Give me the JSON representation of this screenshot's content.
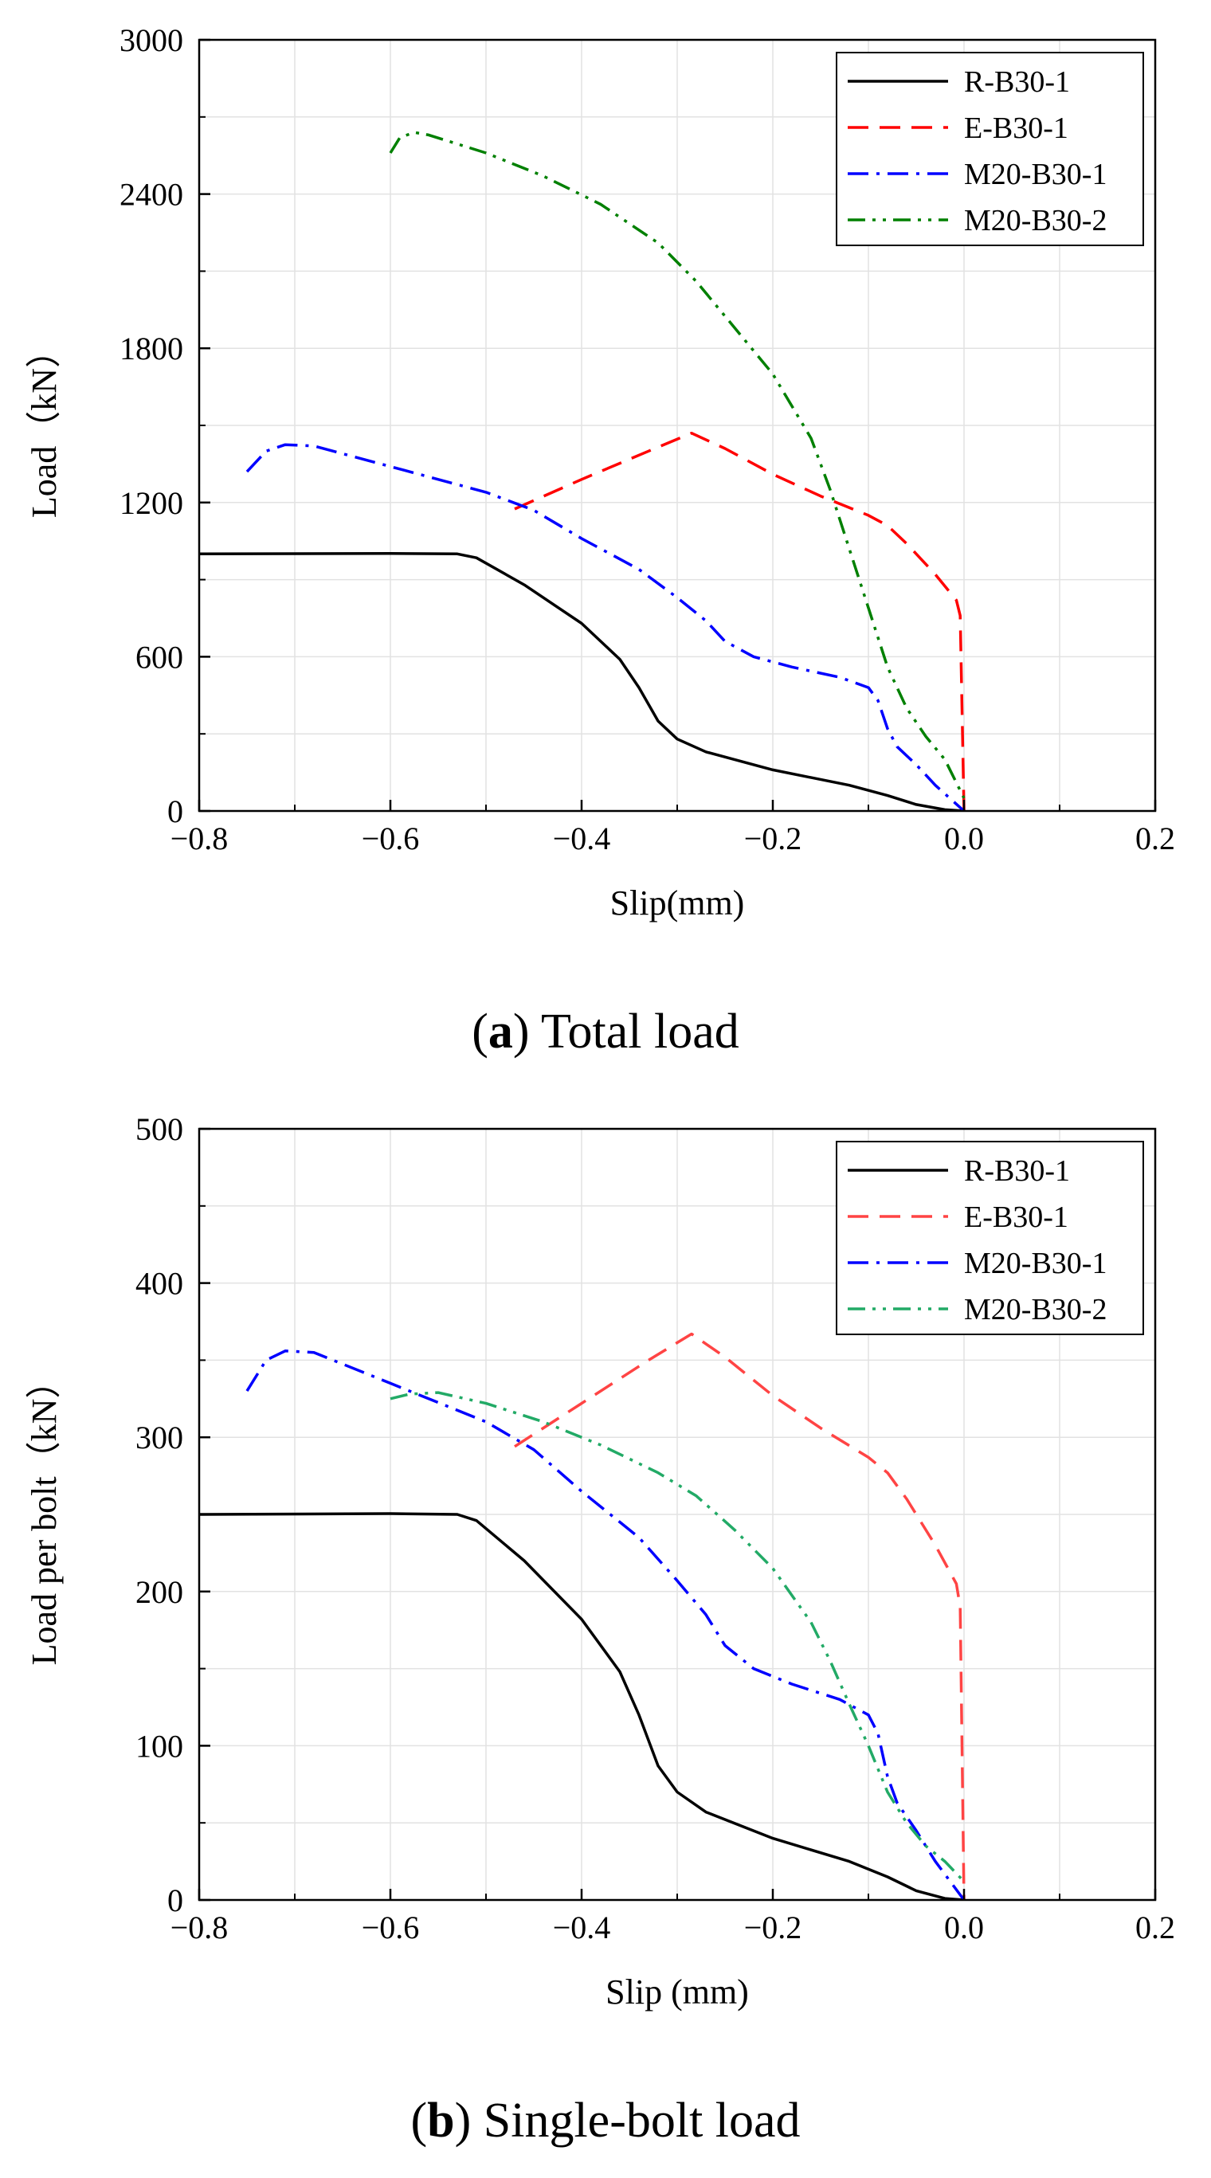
{
  "chart_data": [
    {
      "type": "line",
      "title": "",
      "caption_letter": "a",
      "caption_text": "Total load",
      "xlabel": "Slip(mm)",
      "ylabel": "Load（kN）",
      "xlim": [
        -0.8,
        0.2
      ],
      "ylim": [
        0,
        3000
      ],
      "xticks": [
        -0.8,
        -0.6,
        -0.4,
        -0.2,
        0.0,
        0.2
      ],
      "xtick_labels": [
        "−0.8",
        "−0.6",
        "−0.4",
        "−0.2",
        "0.0",
        "0.2"
      ],
      "yticks": [
        0,
        600,
        1200,
        1800,
        2400,
        3000
      ],
      "ytick_labels": [
        "0",
        "600",
        "1200",
        "1800",
        "2400",
        "3000"
      ],
      "grid": true,
      "legend_position": "top-right",
      "series": [
        {
          "name": "R-B30-1",
          "color": "#000000",
          "style": "solid",
          "x": [
            -0.8,
            -0.6,
            -0.53,
            -0.51,
            -0.46,
            -0.4,
            -0.36,
            -0.34,
            -0.32,
            -0.3,
            -0.27,
            -0.2,
            -0.12,
            -0.08,
            -0.05,
            -0.02,
            0.0
          ],
          "y": [
            1000,
            1002,
            1000,
            985,
            880,
            730,
            590,
            480,
            350,
            280,
            230,
            160,
            100,
            60,
            25,
            5,
            0
          ]
        },
        {
          "name": "E-B30-1",
          "color": "#ff0000",
          "style": "dash",
          "x": [
            -0.47,
            -0.4,
            -0.33,
            -0.285,
            -0.25,
            -0.2,
            -0.15,
            -0.1,
            -0.08,
            -0.06,
            -0.03,
            -0.008,
            -0.004,
            -0.002,
            0.0
          ],
          "y": [
            1175,
            1290,
            1400,
            1470,
            1410,
            1310,
            1225,
            1150,
            1110,
            1040,
            920,
            820,
            760,
            380,
            0
          ]
        },
        {
          "name": "M20-B30-1",
          "color": "#0000ff",
          "style": "dashdot",
          "x": [
            -0.75,
            -0.73,
            -0.71,
            -0.68,
            -0.6,
            -0.5,
            -0.45,
            -0.4,
            -0.34,
            -0.3,
            -0.27,
            -0.25,
            -0.22,
            -0.18,
            -0.13,
            -0.1,
            -0.09,
            -0.08,
            -0.07,
            -0.05,
            -0.03,
            0.0
          ],
          "y": [
            1320,
            1400,
            1425,
            1420,
            1340,
            1240,
            1170,
            1060,
            940,
            830,
            740,
            660,
            600,
            560,
            520,
            480,
            430,
            320,
            250,
            180,
            100,
            0
          ]
        },
        {
          "name": "M20-B30-2",
          "color": "#008000",
          "style": "dashdotdot",
          "x": [
            -0.6,
            -0.59,
            -0.575,
            -0.56,
            -0.5,
            -0.44,
            -0.38,
            -0.32,
            -0.28,
            -0.24,
            -0.2,
            -0.16,
            -0.14,
            -0.12,
            -0.1,
            -0.08,
            -0.06,
            -0.04,
            -0.02,
            0.0
          ],
          "y": [
            2560,
            2620,
            2640,
            2630,
            2560,
            2470,
            2360,
            2210,
            2060,
            1880,
            1700,
            1450,
            1250,
            1020,
            790,
            560,
            400,
            290,
            200,
            50
          ]
        }
      ]
    },
    {
      "type": "line",
      "title": "",
      "caption_letter": "b",
      "caption_text": "Single-bolt load",
      "xlabel": "Slip (mm)",
      "ylabel": "Load per bolt（kN）",
      "xlim": [
        -0.8,
        0.2
      ],
      "ylim": [
        0,
        500
      ],
      "xticks": [
        -0.8,
        -0.6,
        -0.4,
        -0.2,
        0.0,
        0.2
      ],
      "xtick_labels": [
        "−0.8",
        "−0.6",
        "−0.4",
        "−0.2",
        "0.0",
        "0.2"
      ],
      "yticks": [
        0,
        100,
        200,
        300,
        400,
        500
      ],
      "ytick_labels": [
        "0",
        "100",
        "200",
        "300",
        "400",
        "500"
      ],
      "grid": true,
      "legend_position": "top-right",
      "series": [
        {
          "name": "R-B30-1",
          "color": "#000000",
          "style": "solid",
          "x": [
            -0.8,
            -0.6,
            -0.53,
            -0.51,
            -0.46,
            -0.4,
            -0.36,
            -0.34,
            -0.32,
            -0.3,
            -0.27,
            -0.2,
            -0.12,
            -0.08,
            -0.05,
            -0.02,
            0.0
          ],
          "y": [
            250,
            250.5,
            250,
            246,
            220,
            182,
            148,
            120,
            87,
            70,
            57,
            40,
            25,
            15,
            6,
            1,
            0
          ]
        },
        {
          "name": "E-B30-1",
          "color": "#ff4444",
          "style": "dash",
          "x": [
            -0.47,
            -0.4,
            -0.33,
            -0.285,
            -0.25,
            -0.2,
            -0.15,
            -0.1,
            -0.08,
            -0.06,
            -0.03,
            -0.008,
            -0.004,
            -0.002,
            0.0
          ],
          "y": [
            294,
            322,
            350,
            367,
            352,
            327,
            306,
            287,
            277,
            260,
            230,
            205,
            190,
            95,
            0
          ]
        },
        {
          "name": "M20-B30-1",
          "color": "#0000ff",
          "style": "dashdot",
          "x": [
            -0.75,
            -0.73,
            -0.71,
            -0.68,
            -0.6,
            -0.5,
            -0.45,
            -0.4,
            -0.34,
            -0.3,
            -0.27,
            -0.25,
            -0.22,
            -0.18,
            -0.13,
            -0.1,
            -0.09,
            -0.08,
            -0.07,
            -0.05,
            -0.03,
            0.0
          ],
          "y": [
            330,
            350,
            356,
            355,
            335,
            310,
            292,
            265,
            235,
            207,
            185,
            165,
            150,
            140,
            130,
            120,
            108,
            80,
            63,
            45,
            25,
            0
          ]
        },
        {
          "name": "M20-B30-2",
          "color": "#22aa66",
          "style": "dashdotdot",
          "x": [
            -0.6,
            -0.58,
            -0.55,
            -0.5,
            -0.44,
            -0.38,
            -0.32,
            -0.28,
            -0.24,
            -0.2,
            -0.16,
            -0.14,
            -0.12,
            -0.1,
            -0.08,
            -0.06,
            -0.04,
            -0.02,
            0.0
          ],
          "y": [
            325,
            328,
            329,
            322,
            310,
            295,
            277,
            262,
            240,
            215,
            180,
            155,
            127,
            100,
            70,
            50,
            35,
            25,
            12
          ]
        }
      ]
    }
  ]
}
